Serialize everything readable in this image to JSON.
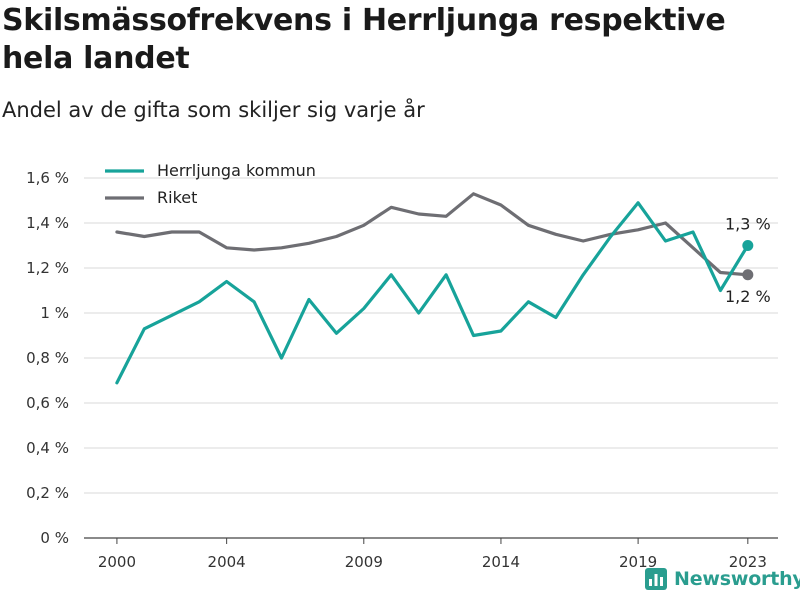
{
  "title": "Skilsmässofrekvens i Herrljunga respektive hela landet",
  "subtitle": "Andel av de gifta som skiljer sig varje år",
  "brand": {
    "name": "Newsworthy",
    "icon": "bar-chart-logo-icon"
  },
  "colors": {
    "herrljunga": "#17a39a",
    "riket": "#6e6e73",
    "grid": "#d9d9d9",
    "brand": "#2a9d8f"
  },
  "chart_data": {
    "type": "line",
    "title": "",
    "xlabel": "",
    "ylabel": "",
    "x": [
      2000,
      2001,
      2002,
      2003,
      2004,
      2005,
      2006,
      2007,
      2008,
      2009,
      2010,
      2011,
      2012,
      2013,
      2014,
      2015,
      2016,
      2017,
      2018,
      2019,
      2020,
      2021,
      2022,
      2023
    ],
    "xticks": [
      2000,
      2004,
      2009,
      2014,
      2019,
      2023
    ],
    "xtick_labels": [
      "2000",
      "2004",
      "2009",
      "2014",
      "2019",
      "2023"
    ],
    "xlim": [
      1998.8,
      2024.1
    ],
    "ylim": [
      0,
      1.6
    ],
    "yticks": [
      0,
      0.2,
      0.4,
      0.6,
      0.8,
      1.0,
      1.2,
      1.4,
      1.6
    ],
    "ytick_labels": [
      "0 %",
      "0,2 %",
      "0,4 %",
      "0,6 %",
      "0,8 %",
      "1 %",
      "1,2 %",
      "1,4 %",
      "1,6 %"
    ],
    "grid": true,
    "legend_position": "top-left",
    "series": [
      {
        "name": "Herrljunga kommun",
        "color": "#17a39a",
        "values": [
          0.69,
          0.93,
          0.99,
          1.05,
          1.14,
          1.05,
          0.8,
          1.06,
          0.91,
          1.02,
          1.17,
          1.0,
          1.17,
          0.9,
          0.92,
          1.05,
          0.98,
          1.17,
          1.34,
          1.49,
          1.32,
          1.36,
          1.1,
          1.3
        ],
        "end_label": "1,3 %"
      },
      {
        "name": "Riket",
        "color": "#6e6e73",
        "values": [
          1.36,
          1.34,
          1.36,
          1.36,
          1.29,
          1.28,
          1.29,
          1.31,
          1.34,
          1.39,
          1.47,
          1.44,
          1.43,
          1.53,
          1.48,
          1.39,
          1.35,
          1.32,
          1.35,
          1.37,
          1.4,
          1.29,
          1.18,
          1.17
        ],
        "end_label": "1,2 %"
      }
    ]
  }
}
